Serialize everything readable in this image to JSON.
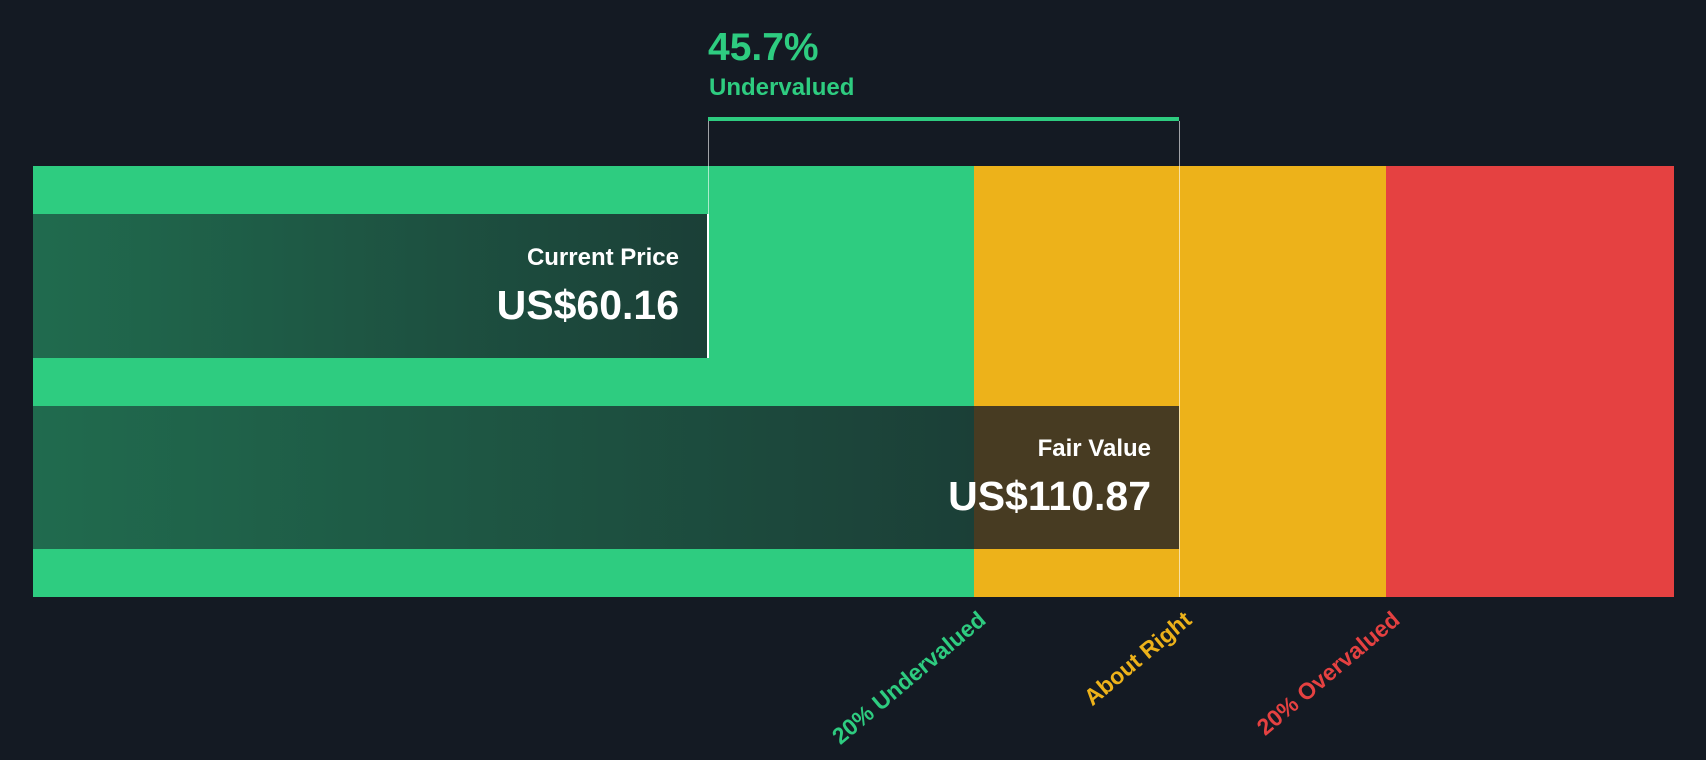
{
  "headline": {
    "percent": "45.7%",
    "label": "Undervalued",
    "color": "#2ecc80"
  },
  "current_price": {
    "label": "Current Price",
    "value": "US$60.16"
  },
  "fair_value": {
    "label": "Fair Value",
    "value": "US$110.87"
  },
  "zones": [
    {
      "label": "20% Undervalued",
      "color": "#2ecc80"
    },
    {
      "label": "About Right",
      "color": "#edb21a"
    },
    {
      "label": "20% Overvalued",
      "color": "#e54141"
    }
  ],
  "chart_data": {
    "type": "bar",
    "categories": [
      "Current Price",
      "Fair Value"
    ],
    "values": [
      60.16,
      110.87
    ],
    "currency": "US$",
    "difference_percent": 45.7,
    "verdict": "Undervalued",
    "zone_labels": [
      "20% Undervalued",
      "About Right",
      "20% Overvalued"
    ]
  }
}
